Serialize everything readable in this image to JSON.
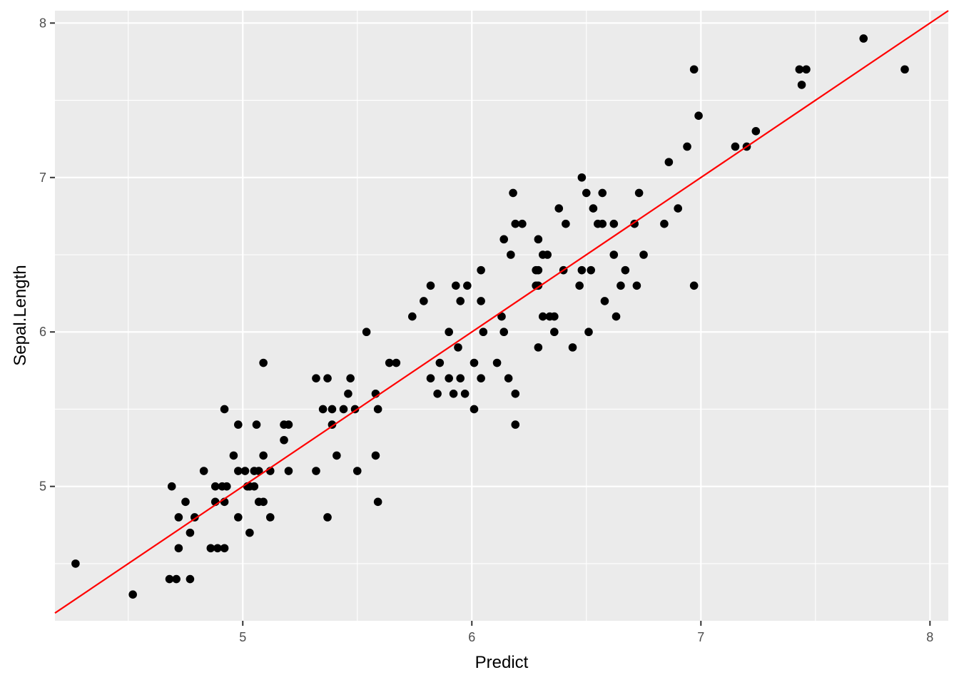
{
  "colors": {
    "panel_background": "#ebebeb",
    "grid_line": "#ffffff",
    "point": "#000000",
    "fit_line": "#ff0000",
    "tick_label": "#4d4d4d"
  },
  "chart_data": {
    "type": "scatter",
    "xlabel": "Predict",
    "ylabel": "Sepal.Length",
    "xlim": [
      4.18,
      8.08
    ],
    "ylim": [
      4.13,
      8.08
    ],
    "x_ticks": [
      5,
      6,
      7,
      8
    ],
    "y_ticks": [
      5,
      6,
      7,
      8
    ],
    "x_tick_labels": [
      "5",
      "6",
      "7",
      "8"
    ],
    "y_tick_labels": [
      "5",
      "6",
      "7",
      "8"
    ],
    "grid": true,
    "reference_line": {
      "intercept": 0,
      "slope": 1
    },
    "points": [
      [
        4.27,
        4.5
      ],
      [
        4.52,
        4.3
      ],
      [
        4.68,
        4.4
      ],
      [
        4.71,
        4.4
      ],
      [
        4.77,
        4.4
      ],
      [
        4.69,
        5.0
      ],
      [
        4.72,
        4.6
      ],
      [
        4.72,
        4.8
      ],
      [
        4.75,
        4.9
      ],
      [
        4.77,
        4.7
      ],
      [
        4.79,
        4.8
      ],
      [
        4.83,
        5.1
      ],
      [
        4.86,
        4.6
      ],
      [
        4.89,
        4.6
      ],
      [
        4.92,
        4.6
      ],
      [
        4.88,
        4.9
      ],
      [
        4.88,
        5.0
      ],
      [
        4.91,
        5.0
      ],
      [
        4.92,
        4.9
      ],
      [
        4.93,
        5.0
      ],
      [
        4.92,
        5.5
      ],
      [
        4.96,
        5.2
      ],
      [
        4.98,
        5.4
      ],
      [
        4.98,
        5.1
      ],
      [
        4.98,
        4.8
      ],
      [
        5.01,
        5.1
      ],
      [
        5.02,
        5.0
      ],
      [
        5.03,
        4.7
      ],
      [
        5.03,
        5.0
      ],
      [
        5.05,
        5.1
      ],
      [
        5.05,
        5.0
      ],
      [
        5.06,
        5.4
      ],
      [
        5.07,
        4.9
      ],
      [
        5.07,
        5.1
      ],
      [
        5.09,
        5.8
      ],
      [
        5.09,
        5.2
      ],
      [
        5.09,
        4.9
      ],
      [
        5.12,
        5.1
      ],
      [
        5.12,
        4.8
      ],
      [
        5.18,
        5.4
      ],
      [
        5.18,
        5.3
      ],
      [
        5.2,
        5.4
      ],
      [
        5.2,
        5.1
      ],
      [
        5.32,
        5.7
      ],
      [
        5.32,
        5.1
      ],
      [
        5.35,
        5.5
      ],
      [
        5.37,
        5.7
      ],
      [
        5.37,
        4.8
      ],
      [
        5.39,
        5.5
      ],
      [
        5.39,
        5.4
      ],
      [
        5.41,
        5.2
      ],
      [
        5.44,
        5.5
      ],
      [
        5.46,
        5.6
      ],
      [
        5.47,
        5.7
      ],
      [
        5.49,
        5.5
      ],
      [
        5.5,
        5.1
      ],
      [
        5.54,
        6.0
      ],
      [
        5.58,
        5.6
      ],
      [
        5.58,
        5.2
      ],
      [
        5.59,
        4.9
      ],
      [
        5.59,
        5.5
      ],
      [
        5.64,
        5.8
      ],
      [
        5.67,
        5.8
      ],
      [
        5.74,
        6.1
      ],
      [
        5.79,
        6.2
      ],
      [
        5.82,
        6.3
      ],
      [
        5.82,
        5.7
      ],
      [
        5.85,
        5.6
      ],
      [
        5.86,
        5.8
      ],
      [
        5.9,
        6.0
      ],
      [
        5.9,
        5.7
      ],
      [
        5.92,
        5.6
      ],
      [
        5.93,
        6.3
      ],
      [
        5.94,
        5.9
      ],
      [
        5.95,
        6.2
      ],
      [
        5.95,
        5.7
      ],
      [
        5.97,
        5.6
      ],
      [
        5.98,
        6.3
      ],
      [
        6.01,
        5.8
      ],
      [
        6.01,
        5.5
      ],
      [
        6.04,
        6.4
      ],
      [
        6.04,
        6.2
      ],
      [
        6.04,
        5.7
      ],
      [
        6.05,
        6.0
      ],
      [
        6.11,
        5.8
      ],
      [
        6.13,
        6.1
      ],
      [
        6.14,
        6.6
      ],
      [
        6.14,
        6.0
      ],
      [
        6.16,
        5.7
      ],
      [
        6.17,
        6.5
      ],
      [
        6.18,
        6.9
      ],
      [
        6.19,
        6.7
      ],
      [
        6.19,
        5.6
      ],
      [
        6.19,
        5.4
      ],
      [
        6.22,
        6.7
      ],
      [
        6.28,
        6.4
      ],
      [
        6.28,
        6.3
      ],
      [
        6.29,
        6.6
      ],
      [
        6.29,
        6.4
      ],
      [
        6.29,
        6.3
      ],
      [
        6.29,
        5.9
      ],
      [
        6.31,
        6.1
      ],
      [
        6.31,
        6.5
      ],
      [
        6.33,
        6.5
      ],
      [
        6.34,
        6.1
      ],
      [
        6.36,
        6.1
      ],
      [
        6.36,
        6.0
      ],
      [
        6.38,
        6.8
      ],
      [
        6.4,
        6.4
      ],
      [
        6.41,
        6.7
      ],
      [
        6.44,
        5.9
      ],
      [
        6.47,
        6.3
      ],
      [
        6.48,
        7.0
      ],
      [
        6.48,
        6.4
      ],
      [
        6.5,
        6.9
      ],
      [
        6.51,
        6.0
      ],
      [
        6.52,
        6.4
      ],
      [
        6.53,
        6.8
      ],
      [
        6.55,
        6.7
      ],
      [
        6.57,
        6.9
      ],
      [
        6.57,
        6.7
      ],
      [
        6.58,
        6.2
      ],
      [
        6.62,
        6.7
      ],
      [
        6.62,
        6.5
      ],
      [
        6.63,
        6.1
      ],
      [
        6.65,
        6.3
      ],
      [
        6.67,
        6.4
      ],
      [
        6.71,
        6.7
      ],
      [
        6.72,
        6.3
      ],
      [
        6.73,
        6.9
      ],
      [
        6.75,
        6.5
      ],
      [
        6.84,
        6.7
      ],
      [
        6.86,
        7.1
      ],
      [
        6.9,
        6.8
      ],
      [
        6.94,
        7.2
      ],
      [
        6.97,
        7.7
      ],
      [
        6.97,
        6.3
      ],
      [
        6.99,
        7.4
      ],
      [
        7.15,
        7.2
      ],
      [
        7.2,
        7.2
      ],
      [
        7.24,
        7.3
      ],
      [
        7.43,
        7.7
      ],
      [
        7.44,
        7.6
      ],
      [
        7.46,
        7.7
      ],
      [
        7.71,
        7.9
      ],
      [
        7.89,
        7.7
      ]
    ]
  }
}
